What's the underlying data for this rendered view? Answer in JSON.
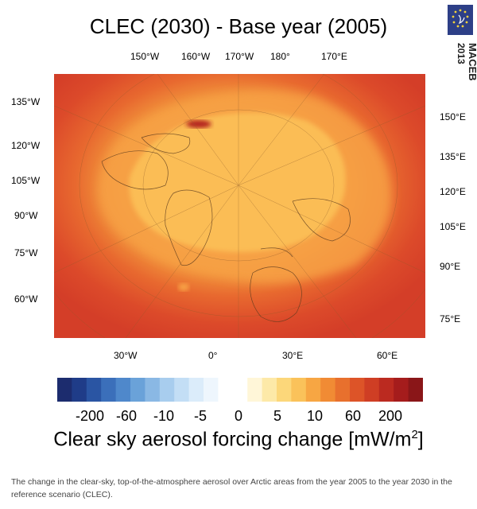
{
  "title": "CLEC (2030) - Base year (2005)",
  "logo": {
    "name": "MACEB",
    "year": "2013"
  },
  "map": {
    "top_labels": [
      "150°W",
      "160°W",
      "170°W",
      "180°",
      "170°E"
    ],
    "left_labels": [
      "135°W",
      "120°W",
      "105°W",
      "90°W",
      "75°W",
      "60°W"
    ],
    "right_labels": [
      "150°E",
      "135°E",
      "120°E",
      "105°E",
      "90°E",
      "75°E"
    ],
    "bottom_labels": [
      "30°W",
      "0°",
      "30°E",
      "60°E"
    ]
  },
  "colorbar": {
    "labels": [
      "-200",
      "-60",
      "-10",
      "-5",
      "0",
      "5",
      "10",
      "60",
      "200"
    ],
    "title": "Clear sky aerosol forcing change [mW/m",
    "title_sup": "2",
    "title_end": "]",
    "colors": [
      "#1c2c6e",
      "#1f3c88",
      "#2a55a3",
      "#3b6fba",
      "#4f88cb",
      "#6aa2d9",
      "#8ab8e4",
      "#a8cdee",
      "#c3def5",
      "#dbecfa",
      "#eef6fd",
      "#ffffff",
      "#ffffff",
      "#fff6d8",
      "#fde9a8",
      "#fcd77a",
      "#fac25a",
      "#f7a643",
      "#f18b34",
      "#e8702d",
      "#dd5428",
      "#cf3e24",
      "#bb2a20",
      "#a51c1c",
      "#8a1618"
    ]
  },
  "caption": "The change in the clear-sky, top-of-the-atmosphere aerosol over Arctic areas from the year 2005 to the year 2030 in the reference scenario (CLEC)."
}
